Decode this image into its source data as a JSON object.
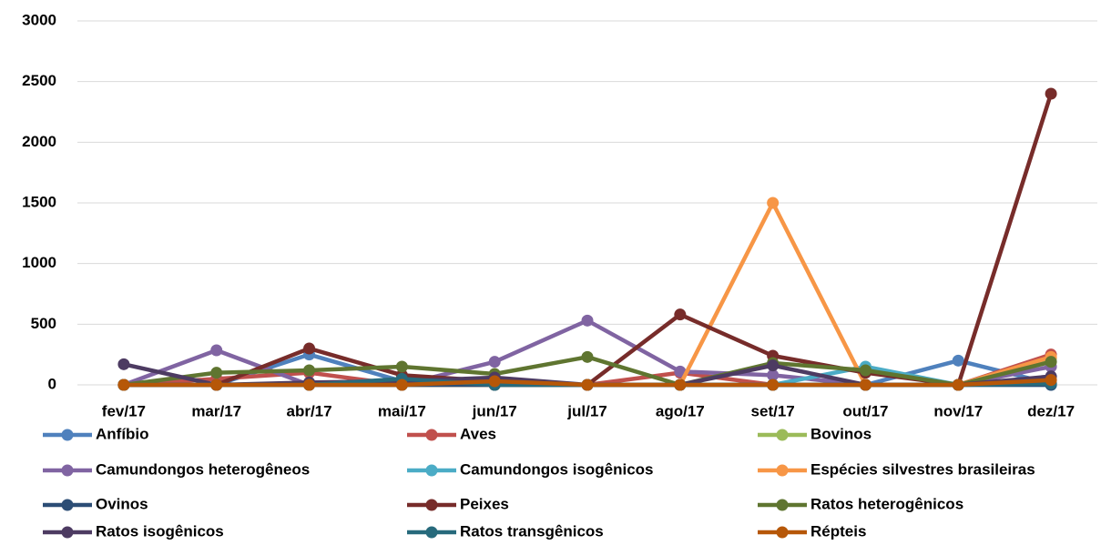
{
  "chart_data": {
    "type": "line",
    "categories": [
      "fev/17",
      "mar/17",
      "abr/17",
      "mai/17",
      "jun/17",
      "jul/17",
      "ago/17",
      "set/17",
      "out/17",
      "nov/17",
      "dez/17"
    ],
    "ylim": [
      0,
      3000
    ],
    "yticks": [
      0,
      500,
      1000,
      1500,
      2000,
      2500,
      3000
    ],
    "grid": true,
    "series": [
      {
        "name": "Anfíbio",
        "color": "#4f81bd",
        "values": [
          0,
          0,
          250,
          30,
          0,
          0,
          0,
          0,
          0,
          200,
          10
        ]
      },
      {
        "name": "Aves",
        "color": "#c0504d",
        "values": [
          0,
          50,
          100,
          0,
          0,
          0,
          100,
          0,
          0,
          0,
          250
        ]
      },
      {
        "name": "Bovinos",
        "color": "#9bbb59",
        "values": [
          0,
          0,
          0,
          0,
          0,
          0,
          0,
          0,
          0,
          0,
          220
        ]
      },
      {
        "name": "Camundongos heterogêneos",
        "color": "#8064a2",
        "values": [
          0,
          285,
          0,
          0,
          190,
          530,
          110,
          80,
          0,
          0,
          150
        ]
      },
      {
        "name": "Camundongos isogênicos",
        "color": "#4bacc6",
        "values": [
          0,
          0,
          0,
          0,
          0,
          0,
          0,
          0,
          150,
          0,
          0
        ]
      },
      {
        "name": "Espécies silvestres brasileiras",
        "color": "#f79646",
        "values": [
          0,
          0,
          0,
          0,
          0,
          0,
          0,
          1500,
          0,
          0,
          230
        ]
      },
      {
        "name": "Ovinos",
        "color": "#2c4d75",
        "values": [
          0,
          0,
          0,
          0,
          0,
          0,
          0,
          0,
          0,
          0,
          0
        ]
      },
      {
        "name": "Peixes",
        "color": "#772c2a",
        "values": [
          0,
          0,
          300,
          80,
          30,
          0,
          580,
          240,
          100,
          0,
          2400
        ]
      },
      {
        "name": "Ratos heterogênicos",
        "color": "#5f7530",
        "values": [
          0,
          100,
          120,
          150,
          90,
          230,
          0,
          180,
          120,
          0,
          190
        ]
      },
      {
        "name": "Ratos isogênicos",
        "color": "#4d3b62",
        "values": [
          170,
          0,
          20,
          30,
          60,
          0,
          0,
          160,
          0,
          0,
          70
        ]
      },
      {
        "name": "Ratos transgênicos",
        "color": "#276a7c",
        "values": [
          0,
          0,
          0,
          50,
          0,
          0,
          0,
          0,
          0,
          0,
          10
        ]
      },
      {
        "name": "Répteis",
        "color": "#b65708",
        "values": [
          0,
          0,
          0,
          0,
          30,
          0,
          0,
          0,
          0,
          0,
          40
        ]
      }
    ]
  }
}
